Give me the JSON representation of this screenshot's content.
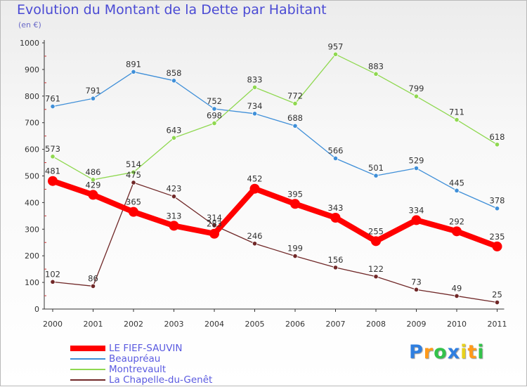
{
  "chart_data": {
    "type": "line",
    "title": "Evolution du Montant de la Dette par Habitant",
    "subtitle": "(en €)",
    "x": [
      "2000",
      "2001",
      "2002",
      "2003",
      "2004",
      "2005",
      "2006",
      "2007",
      "2008",
      "2009",
      "2010",
      "2011"
    ],
    "ylim": [
      0,
      1000
    ],
    "yticks": [
      0,
      100,
      200,
      300,
      400,
      500,
      600,
      700,
      800,
      900,
      1000
    ],
    "grid": false,
    "legend_position": "bottom-left",
    "series": [
      {
        "name": "LE FIEF-SAUVIN",
        "color": "#ff0000",
        "values": [
          481,
          429,
          365,
          313,
          283,
          452,
          395,
          343,
          255,
          334,
          292,
          235
        ]
      },
      {
        "name": "Beaupréau",
        "color": "#3f8fd8",
        "values": [
          761,
          791,
          891,
          858,
          752,
          734,
          688,
          566,
          501,
          529,
          445,
          378
        ]
      },
      {
        "name": "Montrevault",
        "color": "#8fd850",
        "values": [
          573,
          486,
          514,
          643,
          698,
          833,
          772,
          957,
          883,
          799,
          711,
          618
        ]
      },
      {
        "name": "La Chapelle-du-Genêt",
        "color": "#702828",
        "values": [
          102,
          86,
          475,
          423,
          314,
          246,
          199,
          156,
          122,
          73,
          49,
          25
        ]
      }
    ]
  },
  "brand": {
    "letters": [
      "P",
      "r",
      "o",
      "x",
      "i",
      "t",
      "i"
    ],
    "colors": [
      "#2f7fe0",
      "#ff9a1a",
      "#33c24a",
      "#2f7fe0",
      "#e8d21c",
      "#ff9a1a",
      "#33c24a"
    ]
  }
}
